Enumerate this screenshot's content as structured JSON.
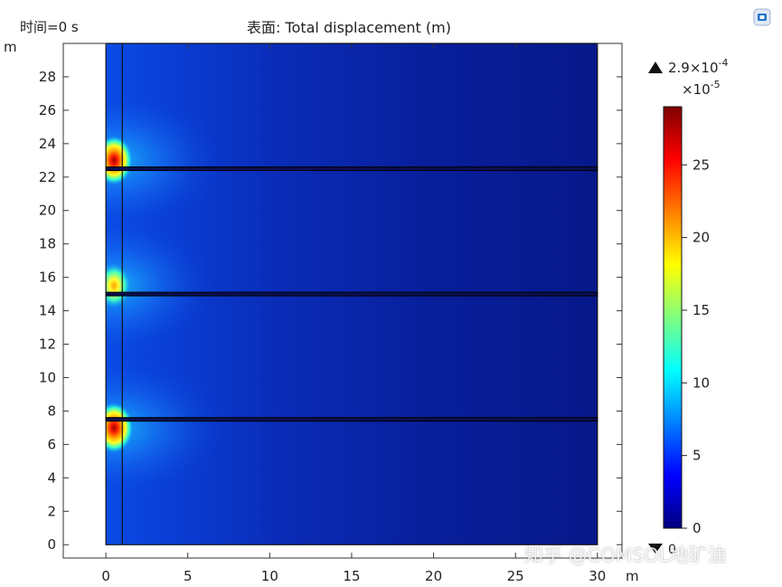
{
  "header": {
    "time_label": "时间=0 s",
    "title": "表面: Total displacement (m)"
  },
  "chart_data": {
    "type": "heatmap",
    "title": "表面: Total displacement (m)",
    "subtitle": "时间=0 s",
    "xlabel": "m",
    "ylabel": "m",
    "xlim": [
      -2.6,
      31.5
    ],
    "ylim": [
      -0.8,
      30.0
    ],
    "xticks": [
      0,
      5,
      10,
      15,
      20,
      25,
      30
    ],
    "yticks": [
      0,
      2,
      4,
      6,
      8,
      10,
      12,
      14,
      16,
      18,
      20,
      22,
      24,
      26,
      28
    ],
    "domain": {
      "x": [
        0,
        30
      ],
      "y": [
        0,
        30
      ]
    },
    "vertical_boundary_x": 1,
    "horizontal_layers_y": [
      7.5,
      15.0,
      22.5
    ],
    "hotspots": [
      {
        "x": 0.5,
        "y": 7.0,
        "value": 29
      },
      {
        "x": 0.5,
        "y": 15.5,
        "value": 20
      },
      {
        "x": 0.5,
        "y": 23.0,
        "value": 27
      }
    ],
    "colorbar": {
      "label_max": "2.9×10",
      "label_max_exp": "-4",
      "scale": "×10",
      "scale_exp": "-5",
      "label_min": "0",
      "min": 0,
      "max": 29,
      "ticks": [
        0,
        5,
        10,
        15,
        20,
        25
      ],
      "colormap": "rainbow"
    }
  },
  "watermark": "知乎 @COMSOL地矿油"
}
